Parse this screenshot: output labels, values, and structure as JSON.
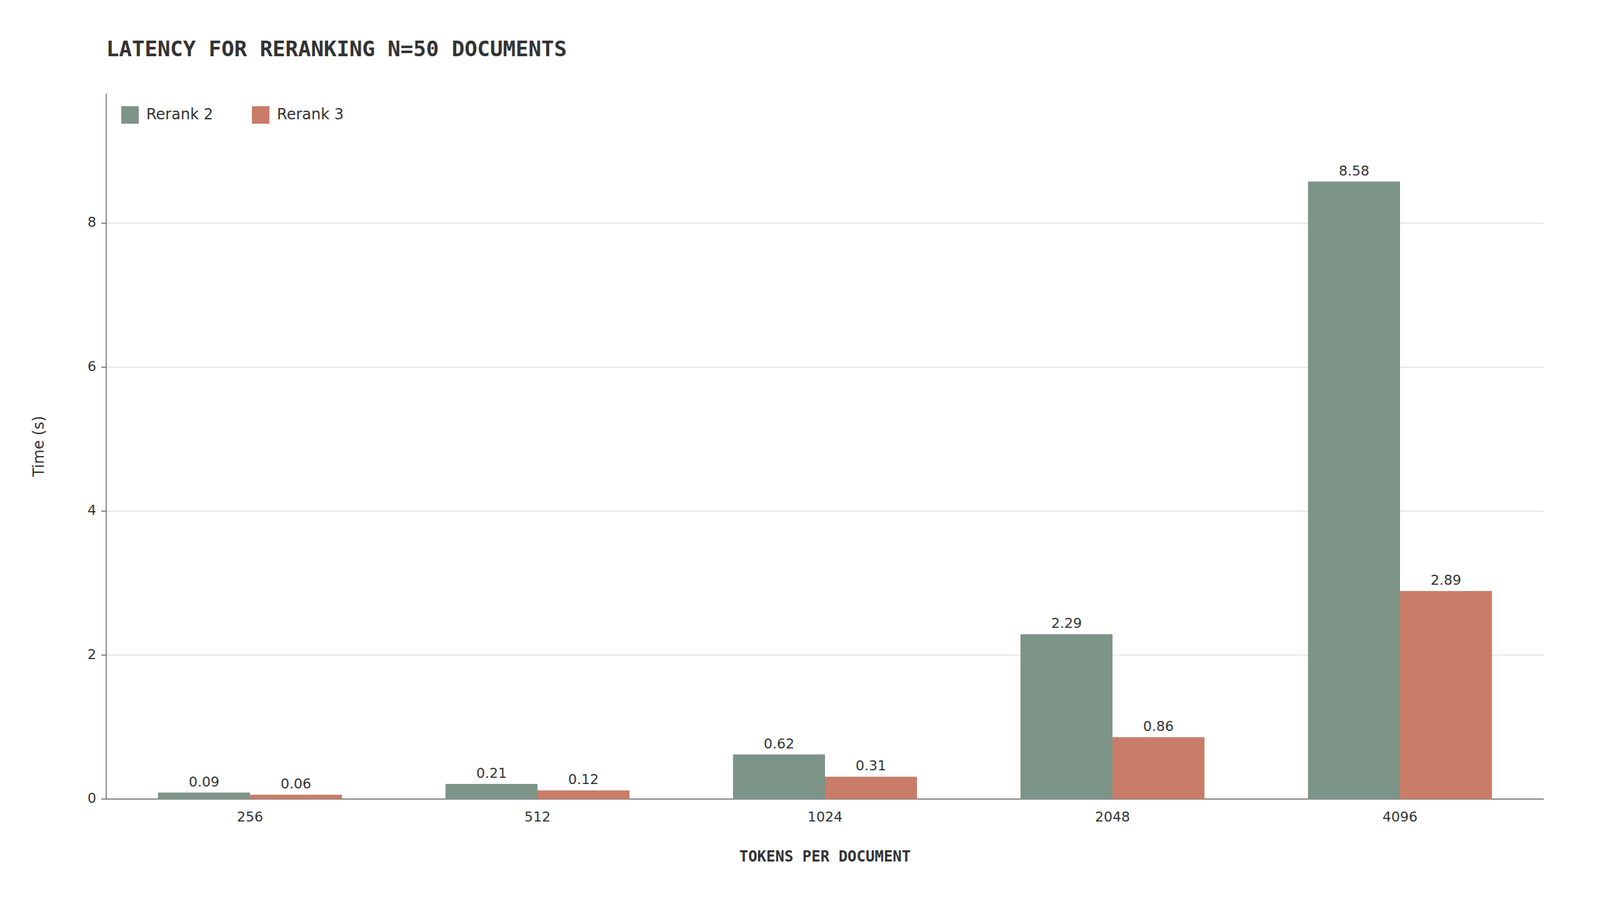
{
  "chart_data": {
    "type": "bar",
    "title": "LATENCY FOR RERANKING N=50 DOCUMENTS",
    "xlabel": "TOKENS PER DOCUMENT",
    "ylabel": "Time (s)",
    "categories": [
      "256",
      "512",
      "1024",
      "2048",
      "4096"
    ],
    "series": [
      {
        "name": "Rerank 2",
        "color": "#7d9488",
        "values": [
          0.09,
          0.21,
          0.62,
          2.29,
          8.58
        ]
      },
      {
        "name": "Rerank 3",
        "color": "#c97d68",
        "values": [
          0.06,
          0.12,
          0.31,
          0.86,
          2.89
        ]
      }
    ],
    "ylim": [
      0,
      9.8
    ],
    "yticks": [
      0,
      2,
      4,
      6,
      8
    ],
    "grid": true,
    "legend": "upper left",
    "data_labels": true
  }
}
